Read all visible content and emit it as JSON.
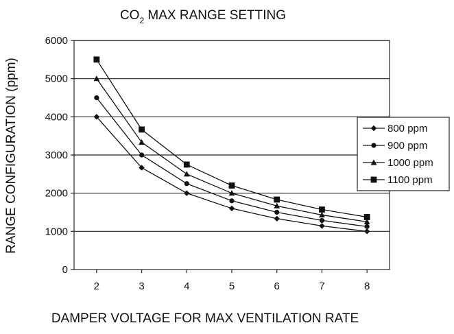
{
  "chart_data": {
    "type": "line",
    "title": {
      "main": "CO",
      "sub": "2",
      "rest": " MAX RANGE SETTING"
    },
    "xlabel": "DAMPER VOLTAGE FOR MAX VENTILATION RATE",
    "ylabel": "RANGE CONFIGURATION (ppm)",
    "x": [
      2,
      3,
      4,
      5,
      6,
      7,
      8
    ],
    "xlim": [
      1.5,
      8.5
    ],
    "ylim": [
      0,
      6000
    ],
    "yticks": [
      0,
      1000,
      2000,
      3000,
      4000,
      5000,
      6000
    ],
    "grid": "horizontal",
    "legend_position": "right",
    "series": [
      {
        "name": "800 ppm",
        "marker": "diamond",
        "values": [
          4000,
          2667,
          2000,
          1600,
          1333,
          1143,
          1000
        ]
      },
      {
        "name": "900 ppm",
        "marker": "circle",
        "values": [
          4500,
          3000,
          2250,
          1800,
          1500,
          1286,
          1125
        ]
      },
      {
        "name": "1000 ppm",
        "marker": "triangle",
        "values": [
          5000,
          3333,
          2500,
          2000,
          1667,
          1429,
          1250
        ]
      },
      {
        "name": "1100 ppm",
        "marker": "square",
        "values": [
          5500,
          3667,
          2750,
          2200,
          1833,
          1571,
          1375
        ]
      }
    ]
  }
}
